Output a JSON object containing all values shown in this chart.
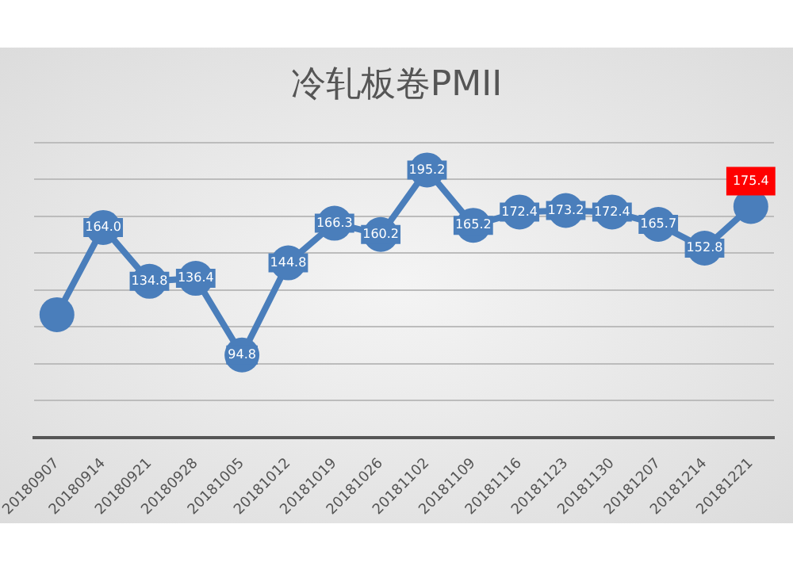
{
  "chart_data": {
    "type": "line",
    "title": "冷轧板卷PMII",
    "categories": [
      "20180907",
      "20180914",
      "20180921",
      "20180928",
      "20181005",
      "20181012",
      "20181019",
      "20181026",
      "20181102",
      "20181109",
      "20181116",
      "20181123",
      "20181130",
      "20181207",
      "20181214",
      "20181221"
    ],
    "series": [
      {
        "color": "#4a7ebb",
        "values": [
          116.7,
          164.0,
          134.8,
          136.4,
          94.8,
          144.8,
          166.3,
          160.2,
          195.2,
          165.2,
          172.4,
          173.2,
          172.4,
          165.7,
          152.8,
          175.4
        ],
        "value_labels": [
          null,
          "164.0",
          "134.8",
          "136.4",
          "94.8",
          "144.8",
          "166.3",
          "160.2",
          "195.2",
          "165.2",
          "172.4",
          "173.2",
          "172.4",
          "165.7",
          "152.8",
          "175.4"
        ]
      }
    ],
    "ylim": [
      50,
      210
    ],
    "yticks": [
      {
        "value": 50,
        "label": null
      },
      {
        "value": 70,
        "label": null
      },
      {
        "value": 90,
        "label": null
      },
      {
        "value": 110,
        "label": null
      },
      {
        "value": 130,
        "label": null
      },
      {
        "value": 150,
        "label": null
      },
      {
        "value": 170,
        "label": null
      },
      {
        "value": 190,
        "label": null
      },
      {
        "value": 210,
        "label": null
      }
    ],
    "tick_labels": "x",
    "grid": "y",
    "legend": false,
    "marker": "circle",
    "line_style": "solid"
  }
}
